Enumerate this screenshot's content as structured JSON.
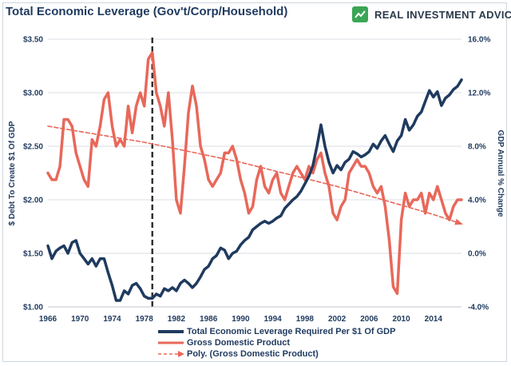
{
  "header": {
    "title": "Total Economic Leverage (Gov't/Corp/Household)",
    "brand": "REAL INVESTMENT ADVICE"
  },
  "colors": {
    "leverage": "#1f3a5f",
    "gdp": "#e8685a",
    "trend": "#e8685a",
    "marker_line": "#333333",
    "brand_green": "#3aa655"
  },
  "chart_data": {
    "type": "line",
    "x_ticks": [
      "1966",
      "1970",
      "1974",
      "1978",
      "1982",
      "1986",
      "1990",
      "1994",
      "1998",
      "2002",
      "2006",
      "2010",
      "2014"
    ],
    "xlim": [
      1966,
      2017.5
    ],
    "y_left": {
      "label": "$ Debt To Create $1 Of GDP",
      "ticks": [
        "$1.00",
        "$1.50",
        "$2.00",
        "$2.50",
        "$3.00",
        "$3.50"
      ],
      "lim": [
        1.0,
        3.5
      ]
    },
    "y_right": {
      "label": "GDP Annual % Change",
      "ticks": [
        "-4.0%",
        "0.0%",
        "4.0%",
        "8.0%",
        "12.0%",
        "16.0%"
      ],
      "lim": [
        -4.0,
        16.0
      ]
    },
    "vertical_marker_year": 1979,
    "series": [
      {
        "name": "Total Economic Leverage Required Per $1 Of GDP",
        "axis": "left",
        "points": [
          [
            1966.0,
            1.57
          ],
          [
            1966.5,
            1.45
          ],
          [
            1967.0,
            1.52
          ],
          [
            1967.5,
            1.55
          ],
          [
            1968.0,
            1.57
          ],
          [
            1968.5,
            1.5
          ],
          [
            1969.0,
            1.6
          ],
          [
            1969.5,
            1.62
          ],
          [
            1970.0,
            1.5
          ],
          [
            1970.5,
            1.45
          ],
          [
            1971.0,
            1.4
          ],
          [
            1971.5,
            1.45
          ],
          [
            1972.0,
            1.38
          ],
          [
            1972.5,
            1.45
          ],
          [
            1973.0,
            1.45
          ],
          [
            1973.5,
            1.32
          ],
          [
            1974.0,
            1.2
          ],
          [
            1974.5,
            1.06
          ],
          [
            1975.0,
            1.06
          ],
          [
            1975.5,
            1.15
          ],
          [
            1976.0,
            1.12
          ],
          [
            1976.5,
            1.2
          ],
          [
            1977.0,
            1.22
          ],
          [
            1977.5,
            1.17
          ],
          [
            1978.0,
            1.1
          ],
          [
            1978.5,
            1.08
          ],
          [
            1979.0,
            1.08
          ],
          [
            1979.5,
            1.12
          ],
          [
            1980.0,
            1.1
          ],
          [
            1980.5,
            1.17
          ],
          [
            1981.0,
            1.15
          ],
          [
            1981.5,
            1.18
          ],
          [
            1982.0,
            1.15
          ],
          [
            1982.5,
            1.22
          ],
          [
            1983.0,
            1.25
          ],
          [
            1983.5,
            1.22
          ],
          [
            1984.0,
            1.18
          ],
          [
            1984.5,
            1.22
          ],
          [
            1985.0,
            1.28
          ],
          [
            1985.5,
            1.35
          ],
          [
            1986.0,
            1.38
          ],
          [
            1986.5,
            1.45
          ],
          [
            1987.0,
            1.48
          ],
          [
            1987.5,
            1.55
          ],
          [
            1988.0,
            1.53
          ],
          [
            1988.5,
            1.45
          ],
          [
            1989.0,
            1.5
          ],
          [
            1989.5,
            1.52
          ],
          [
            1990.0,
            1.58
          ],
          [
            1990.5,
            1.62
          ],
          [
            1991.0,
            1.65
          ],
          [
            1991.5,
            1.72
          ],
          [
            1992.0,
            1.75
          ],
          [
            1992.5,
            1.78
          ],
          [
            1993.0,
            1.8
          ],
          [
            1993.5,
            1.78
          ],
          [
            1994.0,
            1.8
          ],
          [
            1994.5,
            1.83
          ],
          [
            1995.0,
            1.85
          ],
          [
            1995.5,
            1.92
          ],
          [
            1996.0,
            1.96
          ],
          [
            1996.5,
            2.0
          ],
          [
            1997.0,
            2.03
          ],
          [
            1997.5,
            2.08
          ],
          [
            1998.0,
            2.15
          ],
          [
            1998.5,
            2.22
          ],
          [
            1999.0,
            2.32
          ],
          [
            1999.5,
            2.5
          ],
          [
            2000.0,
            2.7
          ],
          [
            2000.5,
            2.5
          ],
          [
            2001.0,
            2.35
          ],
          [
            2001.5,
            2.25
          ],
          [
            2002.0,
            2.32
          ],
          [
            2002.5,
            2.28
          ],
          [
            2003.0,
            2.35
          ],
          [
            2003.5,
            2.38
          ],
          [
            2004.0,
            2.45
          ],
          [
            2004.5,
            2.43
          ],
          [
            2005.0,
            2.4
          ],
          [
            2005.5,
            2.42
          ],
          [
            2006.0,
            2.45
          ],
          [
            2006.5,
            2.52
          ],
          [
            2007.0,
            2.48
          ],
          [
            2007.5,
            2.55
          ],
          [
            2008.0,
            2.6
          ],
          [
            2008.5,
            2.52
          ],
          [
            2009.0,
            2.45
          ],
          [
            2009.5,
            2.55
          ],
          [
            2010.0,
            2.6
          ],
          [
            2010.5,
            2.75
          ],
          [
            2011.0,
            2.65
          ],
          [
            2011.5,
            2.7
          ],
          [
            2012.0,
            2.78
          ],
          [
            2012.5,
            2.82
          ],
          [
            2013.0,
            2.92
          ],
          [
            2013.5,
            3.02
          ],
          [
            2014.0,
            2.96
          ],
          [
            2014.5,
            3.01
          ],
          [
            2015.0,
            2.88
          ],
          [
            2015.5,
            2.95
          ],
          [
            2016.0,
            2.98
          ],
          [
            2016.5,
            3.03
          ],
          [
            2017.0,
            3.06
          ],
          [
            2017.5,
            3.12
          ]
        ]
      },
      {
        "name": "Gross Domestic Product",
        "axis": "right",
        "points": [
          [
            1966.0,
            6.0
          ],
          [
            1966.5,
            5.5
          ],
          [
            1967.0,
            5.5
          ],
          [
            1967.5,
            6.5
          ],
          [
            1968.0,
            10.0
          ],
          [
            1968.5,
            10.0
          ],
          [
            1969.0,
            9.5
          ],
          [
            1969.5,
            7.5
          ],
          [
            1970.0,
            6.5
          ],
          [
            1970.5,
            5.5
          ],
          [
            1971.0,
            5.0
          ],
          [
            1971.5,
            8.5
          ],
          [
            1972.0,
            8.0
          ],
          [
            1972.5,
            9.5
          ],
          [
            1973.0,
            11.5
          ],
          [
            1973.5,
            12.0
          ],
          [
            1974.0,
            9.5
          ],
          [
            1974.5,
            8.0
          ],
          [
            1975.0,
            8.5
          ],
          [
            1975.5,
            8.0
          ],
          [
            1976.0,
            11.0
          ],
          [
            1976.5,
            9.0
          ],
          [
            1977.0,
            11.0
          ],
          [
            1977.5,
            12.0
          ],
          [
            1978.0,
            11.0
          ],
          [
            1978.5,
            14.5
          ],
          [
            1979.0,
            15.0
          ],
          [
            1979.5,
            12.0
          ],
          [
            1980.0,
            11.0
          ],
          [
            1980.5,
            9.5
          ],
          [
            1981.0,
            12.0
          ],
          [
            1981.5,
            8.5
          ],
          [
            1982.0,
            4.0
          ],
          [
            1982.5,
            3.0
          ],
          [
            1983.0,
            6.5
          ],
          [
            1983.5,
            10.5
          ],
          [
            1984.0,
            12.5
          ],
          [
            1984.5,
            11.0
          ],
          [
            1985.0,
            8.0
          ],
          [
            1985.5,
            7.0
          ],
          [
            1986.0,
            5.5
          ],
          [
            1986.5,
            5.0
          ],
          [
            1987.0,
            5.5
          ],
          [
            1987.5,
            6.0
          ],
          [
            1988.0,
            7.5
          ],
          [
            1988.5,
            7.5
          ],
          [
            1989.0,
            8.0
          ],
          [
            1989.5,
            7.0
          ],
          [
            1990.0,
            5.5
          ],
          [
            1990.5,
            4.5
          ],
          [
            1991.0,
            3.0
          ],
          [
            1991.5,
            3.5
          ],
          [
            1992.0,
            5.5
          ],
          [
            1992.5,
            6.5
          ],
          [
            1993.0,
            5.0
          ],
          [
            1993.5,
            4.5
          ],
          [
            1994.0,
            5.5
          ],
          [
            1994.5,
            6.0
          ],
          [
            1995.0,
            4.5
          ],
          [
            1995.5,
            4.0
          ],
          [
            1996.0,
            5.0
          ],
          [
            1996.5,
            6.0
          ],
          [
            1997.0,
            6.5
          ],
          [
            1997.5,
            6.0
          ],
          [
            1998.0,
            5.5
          ],
          [
            1998.5,
            6.5
          ],
          [
            1999.0,
            6.0
          ],
          [
            1999.5,
            7.0
          ],
          [
            2000.0,
            7.5
          ],
          [
            2000.5,
            6.0
          ],
          [
            2001.0,
            5.0
          ],
          [
            2001.5,
            3.0
          ],
          [
            2002.0,
            2.5
          ],
          [
            2002.5,
            3.5
          ],
          [
            2003.0,
            4.0
          ],
          [
            2003.5,
            6.0
          ],
          [
            2004.0,
            6.5
          ],
          [
            2004.5,
            7.0
          ],
          [
            2005.0,
            6.5
          ],
          [
            2005.5,
            6.5
          ],
          [
            2006.0,
            6.0
          ],
          [
            2006.5,
            5.0
          ],
          [
            2007.0,
            4.5
          ],
          [
            2007.5,
            5.0
          ],
          [
            2008.0,
            3.5
          ],
          [
            2008.5,
            1.0
          ],
          [
            2009.0,
            -2.5
          ],
          [
            2009.5,
            -3.0
          ],
          [
            2010.0,
            2.5
          ],
          [
            2010.5,
            4.5
          ],
          [
            2011.0,
            3.5
          ],
          [
            2011.5,
            4.0
          ],
          [
            2012.0,
            4.0
          ],
          [
            2012.5,
            4.5
          ],
          [
            2013.0,
            3.0
          ],
          [
            2013.5,
            4.5
          ],
          [
            2014.0,
            4.0
          ],
          [
            2014.5,
            5.0
          ],
          [
            2015.0,
            4.0
          ],
          [
            2015.5,
            3.0
          ],
          [
            2016.0,
            2.5
          ],
          [
            2016.5,
            3.5
          ],
          [
            2017.0,
            4.0
          ],
          [
            2017.5,
            4.0
          ]
        ]
      },
      {
        "name": "Poly. (Gross Domestic Product)",
        "axis": "right",
        "style": "dashed-arrow",
        "points": [
          [
            1966.0,
            9.5
          ],
          [
            1970.0,
            9.1
          ],
          [
            1974.0,
            8.7
          ],
          [
            1978.0,
            8.3
          ],
          [
            1982.0,
            7.8
          ],
          [
            1986.0,
            7.3
          ],
          [
            1990.0,
            6.8
          ],
          [
            1994.0,
            6.2
          ],
          [
            1998.0,
            5.6
          ],
          [
            2002.0,
            5.0
          ],
          [
            2006.0,
            4.3
          ],
          [
            2010.0,
            3.6
          ],
          [
            2014.0,
            2.9
          ],
          [
            2017.5,
            2.2
          ]
        ]
      }
    ],
    "legend": [
      {
        "label": "Total Economic Leverage Required Per $1 Of GDP",
        "style": "solid-thick",
        "color_key": "leverage"
      },
      {
        "label": "Gross Domestic Product",
        "style": "solid",
        "color_key": "gdp"
      },
      {
        "label": "Poly. (Gross Domestic Product)",
        "style": "dashed-arrow",
        "color_key": "trend"
      }
    ],
    "legend_position": "bottom-center"
  }
}
